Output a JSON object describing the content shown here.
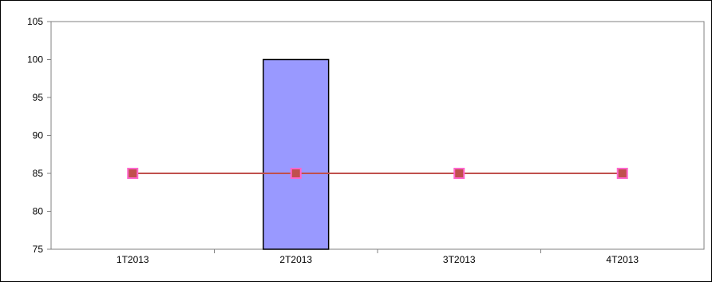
{
  "chart_data": {
    "type": "bar",
    "categories": [
      "1T2013",
      "2T2013",
      "3T2013",
      "4T2013"
    ],
    "series": [
      {
        "type": "bar",
        "values": [
          null,
          100,
          null,
          null
        ],
        "color": "#9999ff"
      },
      {
        "type": "line",
        "values": [
          85,
          85,
          85,
          85
        ],
        "color": "#c0504d",
        "marker_color": "#ff66cc"
      }
    ],
    "ylim": [
      75,
      105
    ],
    "yticks": [
      75,
      80,
      85,
      90,
      95,
      100,
      105
    ],
    "grid": false,
    "legend": "none"
  }
}
